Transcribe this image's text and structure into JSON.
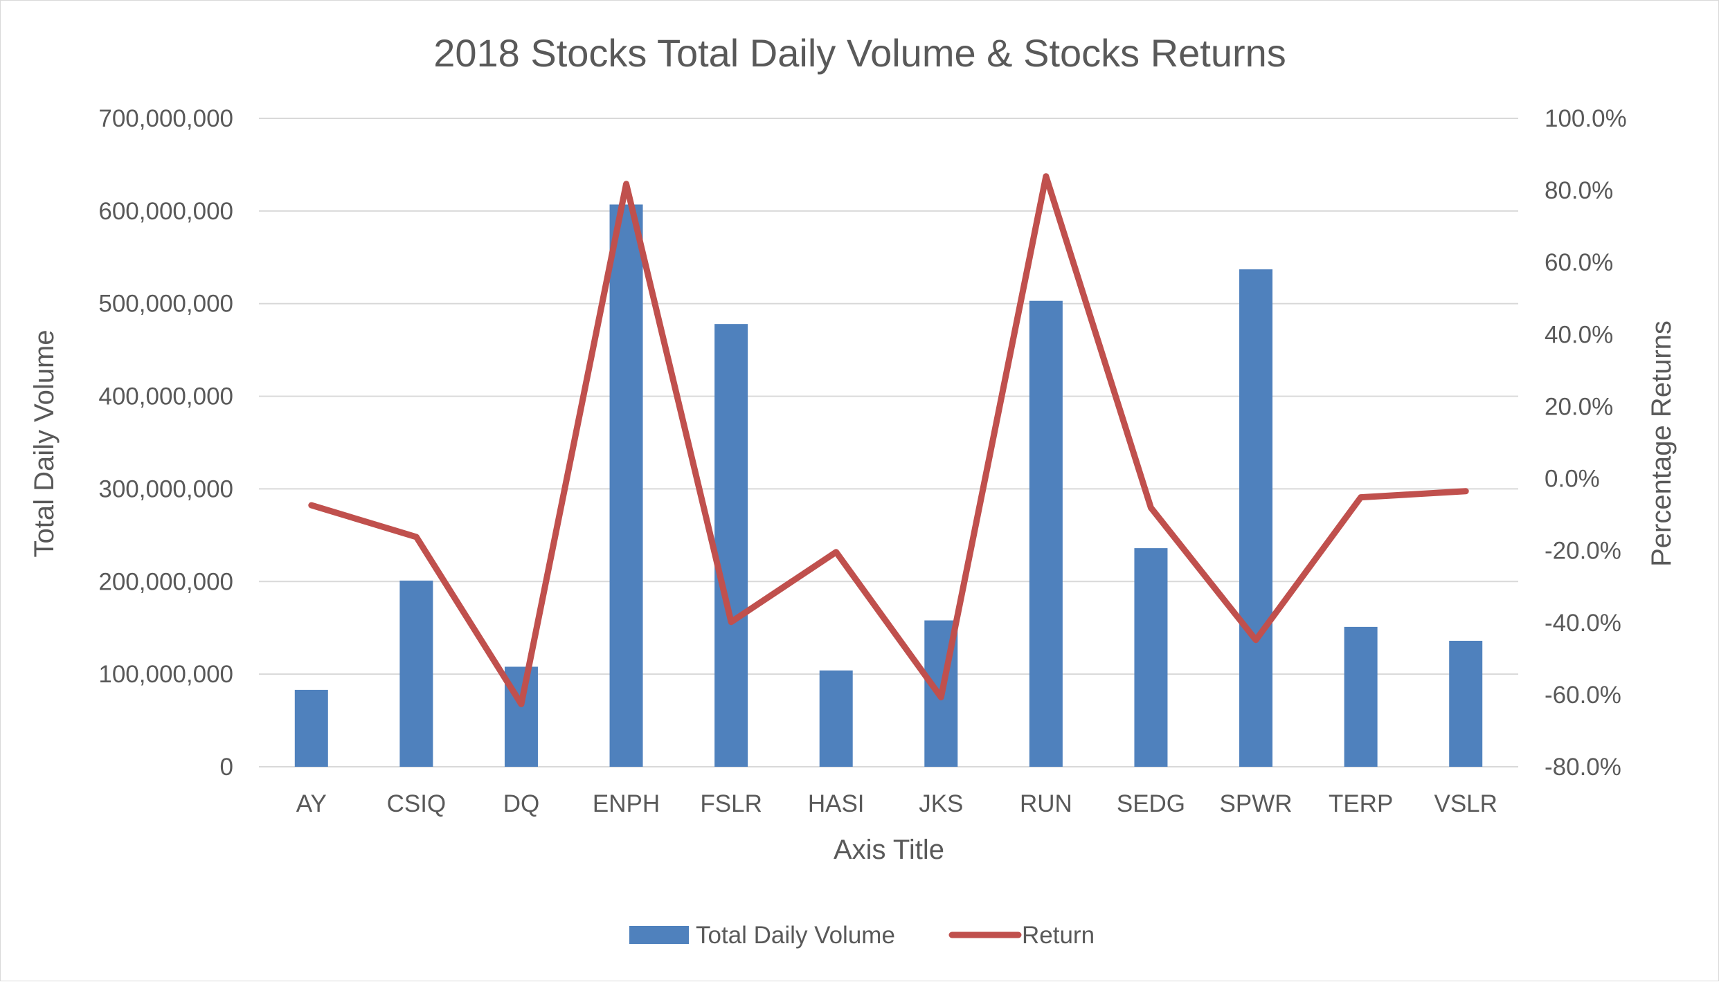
{
  "chart_data": {
    "type": "bar",
    "title": "2018 Stocks Total Daily Volume & Stocks Returns",
    "xlabel": "Axis Title",
    "ylabel": "Total Daily Volume",
    "y2label": "Percentage Returns",
    "categories": [
      "AY",
      "CSIQ",
      "DQ",
      "ENPH",
      "FSLR",
      "HASI",
      "JKS",
      "RUN",
      "SEDG",
      "SPWR",
      "TERP",
      "VSLR"
    ],
    "ylim": [
      0,
      700000000
    ],
    "y_ticks": [
      0,
      100000000,
      200000000,
      300000000,
      400000000,
      500000000,
      600000000,
      700000000
    ],
    "y_tick_labels": [
      "0",
      "100,000,000",
      "200,000,000",
      "300,000,000",
      "400,000,000",
      "500,000,000",
      "600,000,000",
      "700,000,000"
    ],
    "y2lim": [
      -0.8,
      1.0
    ],
    "y2_ticks": [
      -0.8,
      -0.6,
      -0.4,
      -0.2,
      0.0,
      0.2,
      0.4,
      0.6,
      0.8,
      1.0
    ],
    "y2_tick_labels": [
      "-80.0%",
      "-60.0%",
      "-40.0%",
      "-20.0%",
      "0.0%",
      "20.0%",
      "40.0%",
      "60.0%",
      "80.0%",
      "100.0%"
    ],
    "grid": true,
    "legend_position": "bottom",
    "series": [
      {
        "name": "Total Daily Volume",
        "type": "bar",
        "axis": "left",
        "color": "#4f81bd",
        "values": [
          83000000,
          201000000,
          108000000,
          607000000,
          478000000,
          104000000,
          158000000,
          503000000,
          236000000,
          537000000,
          151000000,
          136000000
        ]
      },
      {
        "name": "Return",
        "type": "line",
        "axis": "right",
        "color": "#c0504d",
        "values": [
          -0.074,
          -0.162,
          -0.626,
          0.818,
          -0.398,
          -0.204,
          -0.607,
          0.839,
          -0.081,
          -0.448,
          -0.052,
          -0.035
        ]
      }
    ]
  }
}
